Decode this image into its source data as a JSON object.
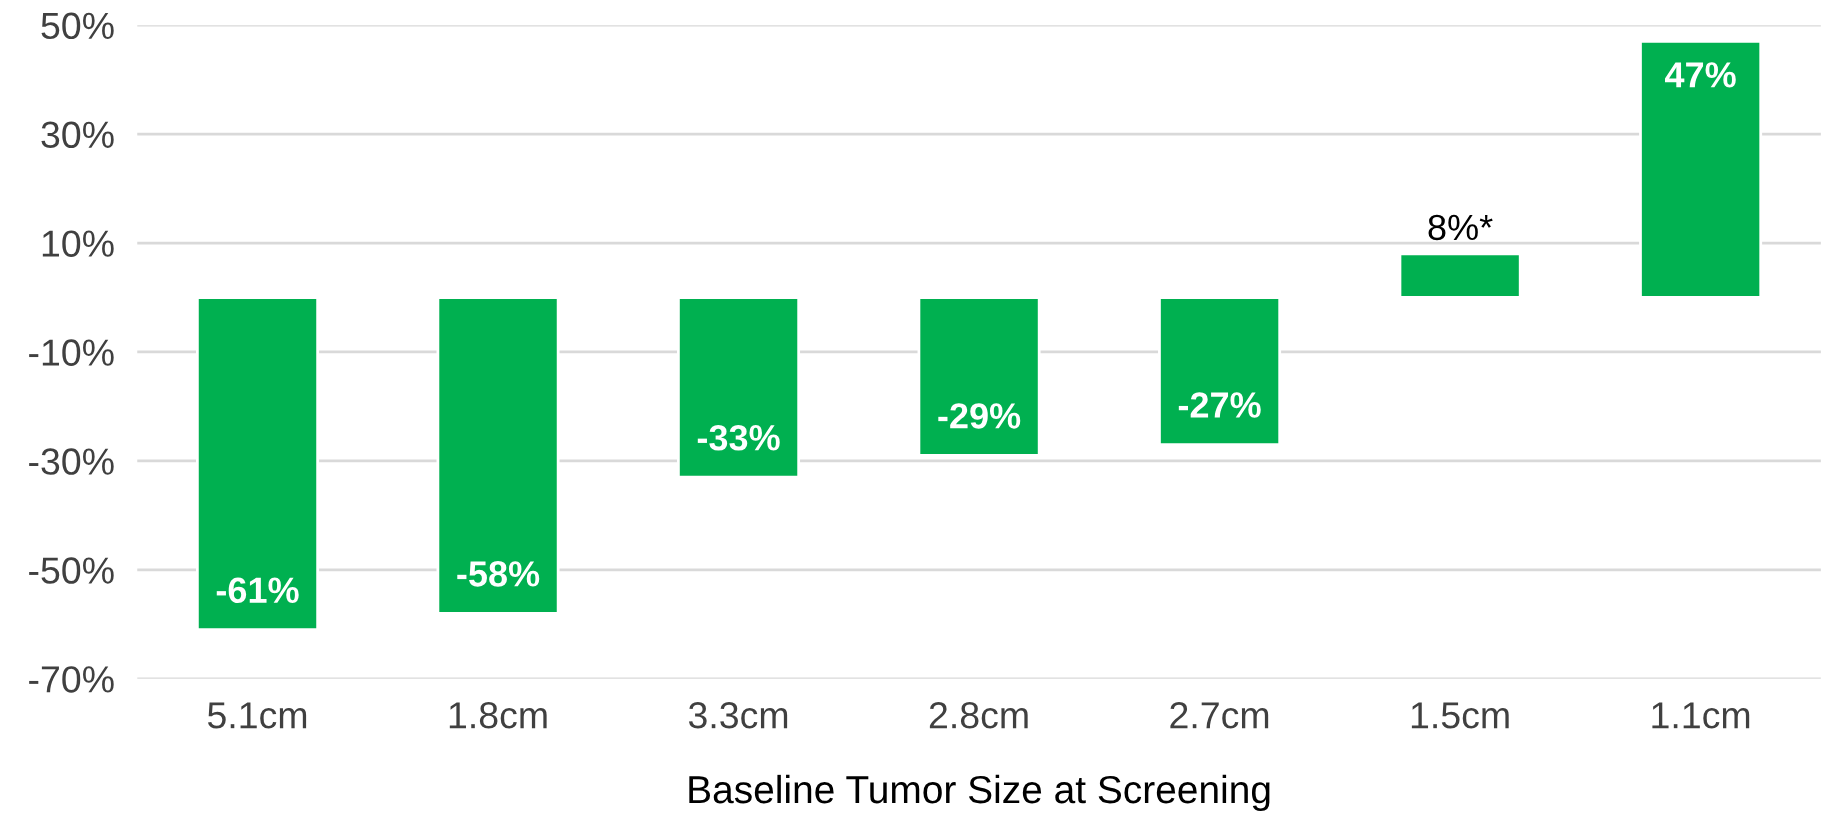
{
  "chart_data": {
    "type": "bar",
    "xlabel": "Baseline Tumor Size at Screening",
    "categories": [
      "5.1cm",
      "1.8cm",
      "3.3cm",
      "2.8cm",
      "2.7cm",
      "1.5cm",
      "1.1cm"
    ],
    "values": [
      -61,
      -58,
      -33,
      -29,
      -27,
      8,
      47
    ],
    "value_labels": [
      "-61%",
      "-58%",
      "-33%",
      "-29%",
      "-27%",
      "8%*",
      "47%"
    ],
    "color": "#00b050",
    "ylim": [
      -70,
      50
    ],
    "yticks": [
      {
        "value": -70,
        "label": "-70%"
      },
      {
        "value": -50,
        "label": "-50%"
      },
      {
        "value": -30,
        "label": "-30%"
      },
      {
        "value": -10,
        "label": "-10%"
      },
      {
        "value": 10,
        "label": "10%"
      },
      {
        "value": 30,
        "label": "30%"
      },
      {
        "value": 50,
        "label": "50%"
      }
    ],
    "grid": "y",
    "legend": false
  }
}
